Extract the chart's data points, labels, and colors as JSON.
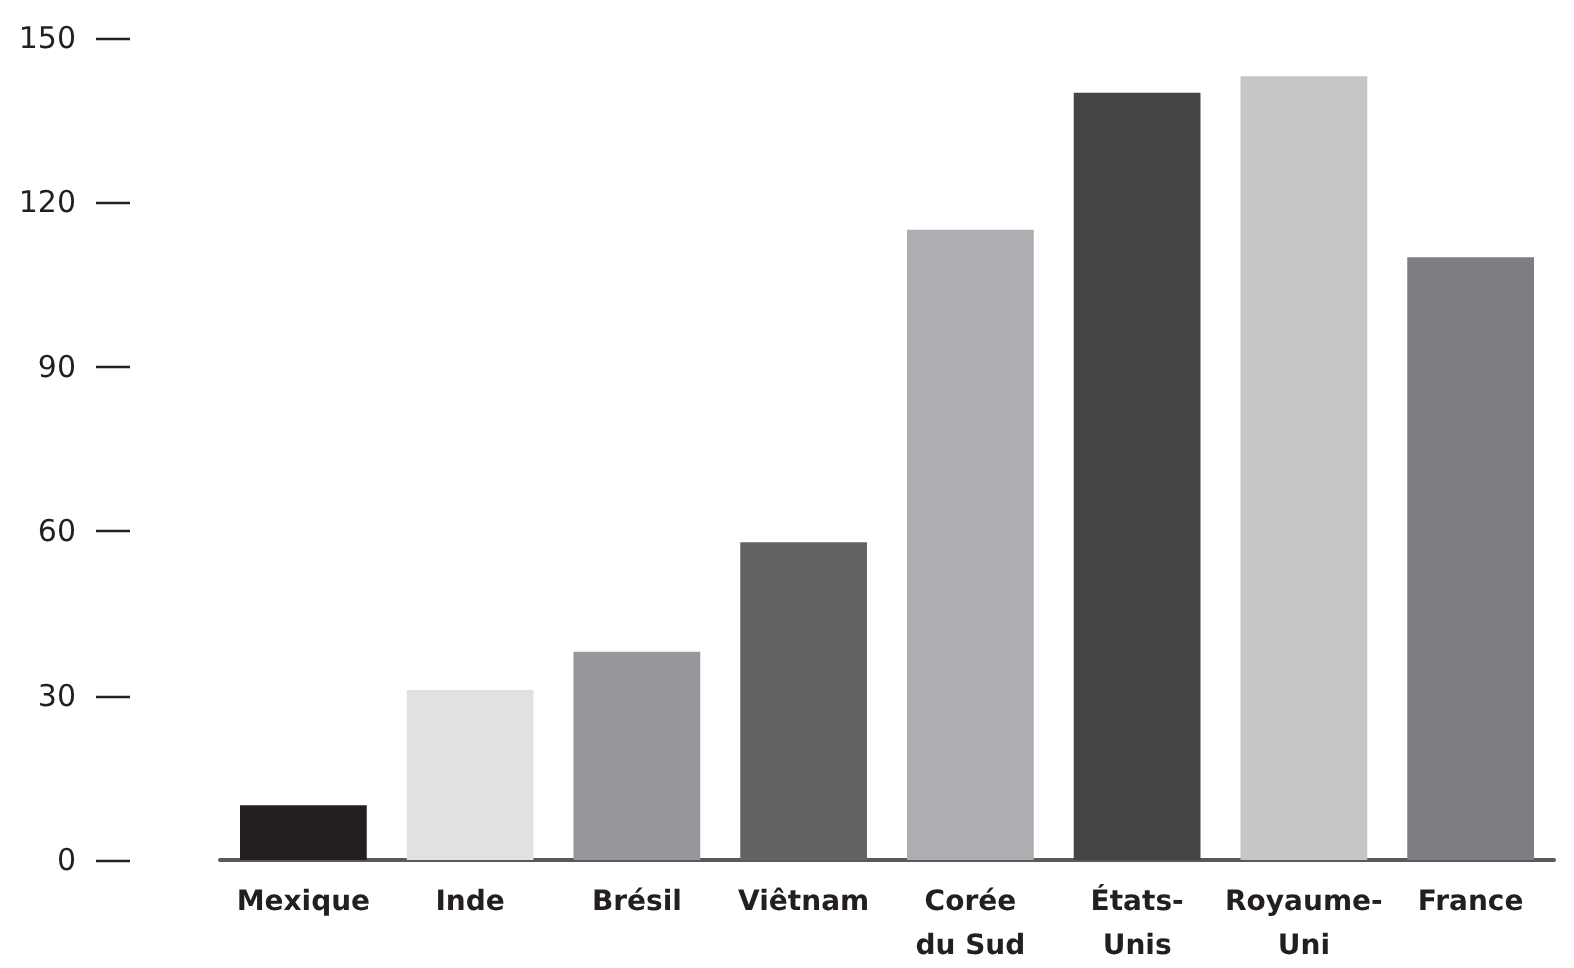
{
  "chart_data": {
    "type": "bar",
    "categories": [
      "Mexique",
      "Inde",
      "Brésil",
      "Viêtnam",
      "Corée du Sud",
      "États-Unis",
      "Royaume-Uni",
      "France"
    ],
    "values": [
      10,
      31,
      38,
      58,
      115,
      140,
      143,
      110
    ],
    "colors": [
      "#231f20",
      "#e0e1e2",
      "#96979b",
      "#636366",
      "#adaeb2",
      "#444547",
      "#c5c6c8",
      "#7d7e82"
    ],
    "ylim": [
      0,
      150
    ],
    "yticks": [
      0,
      30,
      60,
      90,
      120,
      150
    ]
  }
}
